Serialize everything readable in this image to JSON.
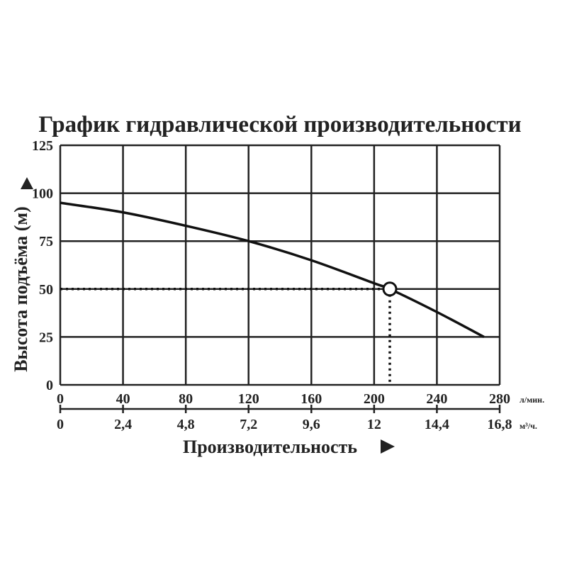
{
  "chart_data": {
    "type": "line",
    "title": "График гидравлической производительности",
    "ylabel": "Высота подъёма (м)",
    "xlabel": "Производительность",
    "ylim": [
      0,
      125
    ],
    "xlim": [
      0,
      280
    ],
    "grid": true,
    "y_ticks": [
      "0",
      "25",
      "50",
      "75",
      "100",
      "125"
    ],
    "x_ticks_lpm": [
      "0",
      "40",
      "80",
      "120",
      "160",
      "200",
      "240",
      "280"
    ],
    "x_unit_lpm": "л/мин.",
    "x_ticks_m3h": [
      "0",
      "2,4",
      "4,8",
      "7,2",
      "9,6",
      "12",
      "14,4",
      "16,8"
    ],
    "x_unit_m3h": "м³/ч.",
    "series": [
      {
        "x": [
          0,
          40,
          80,
          120,
          160,
          200,
          210,
          240,
          270
        ],
        "y": [
          95,
          90,
          83,
          75,
          65,
          53,
          50,
          38,
          25
        ]
      }
    ],
    "marker": {
      "x": 210,
      "y": 50
    },
    "color": "#111111"
  }
}
